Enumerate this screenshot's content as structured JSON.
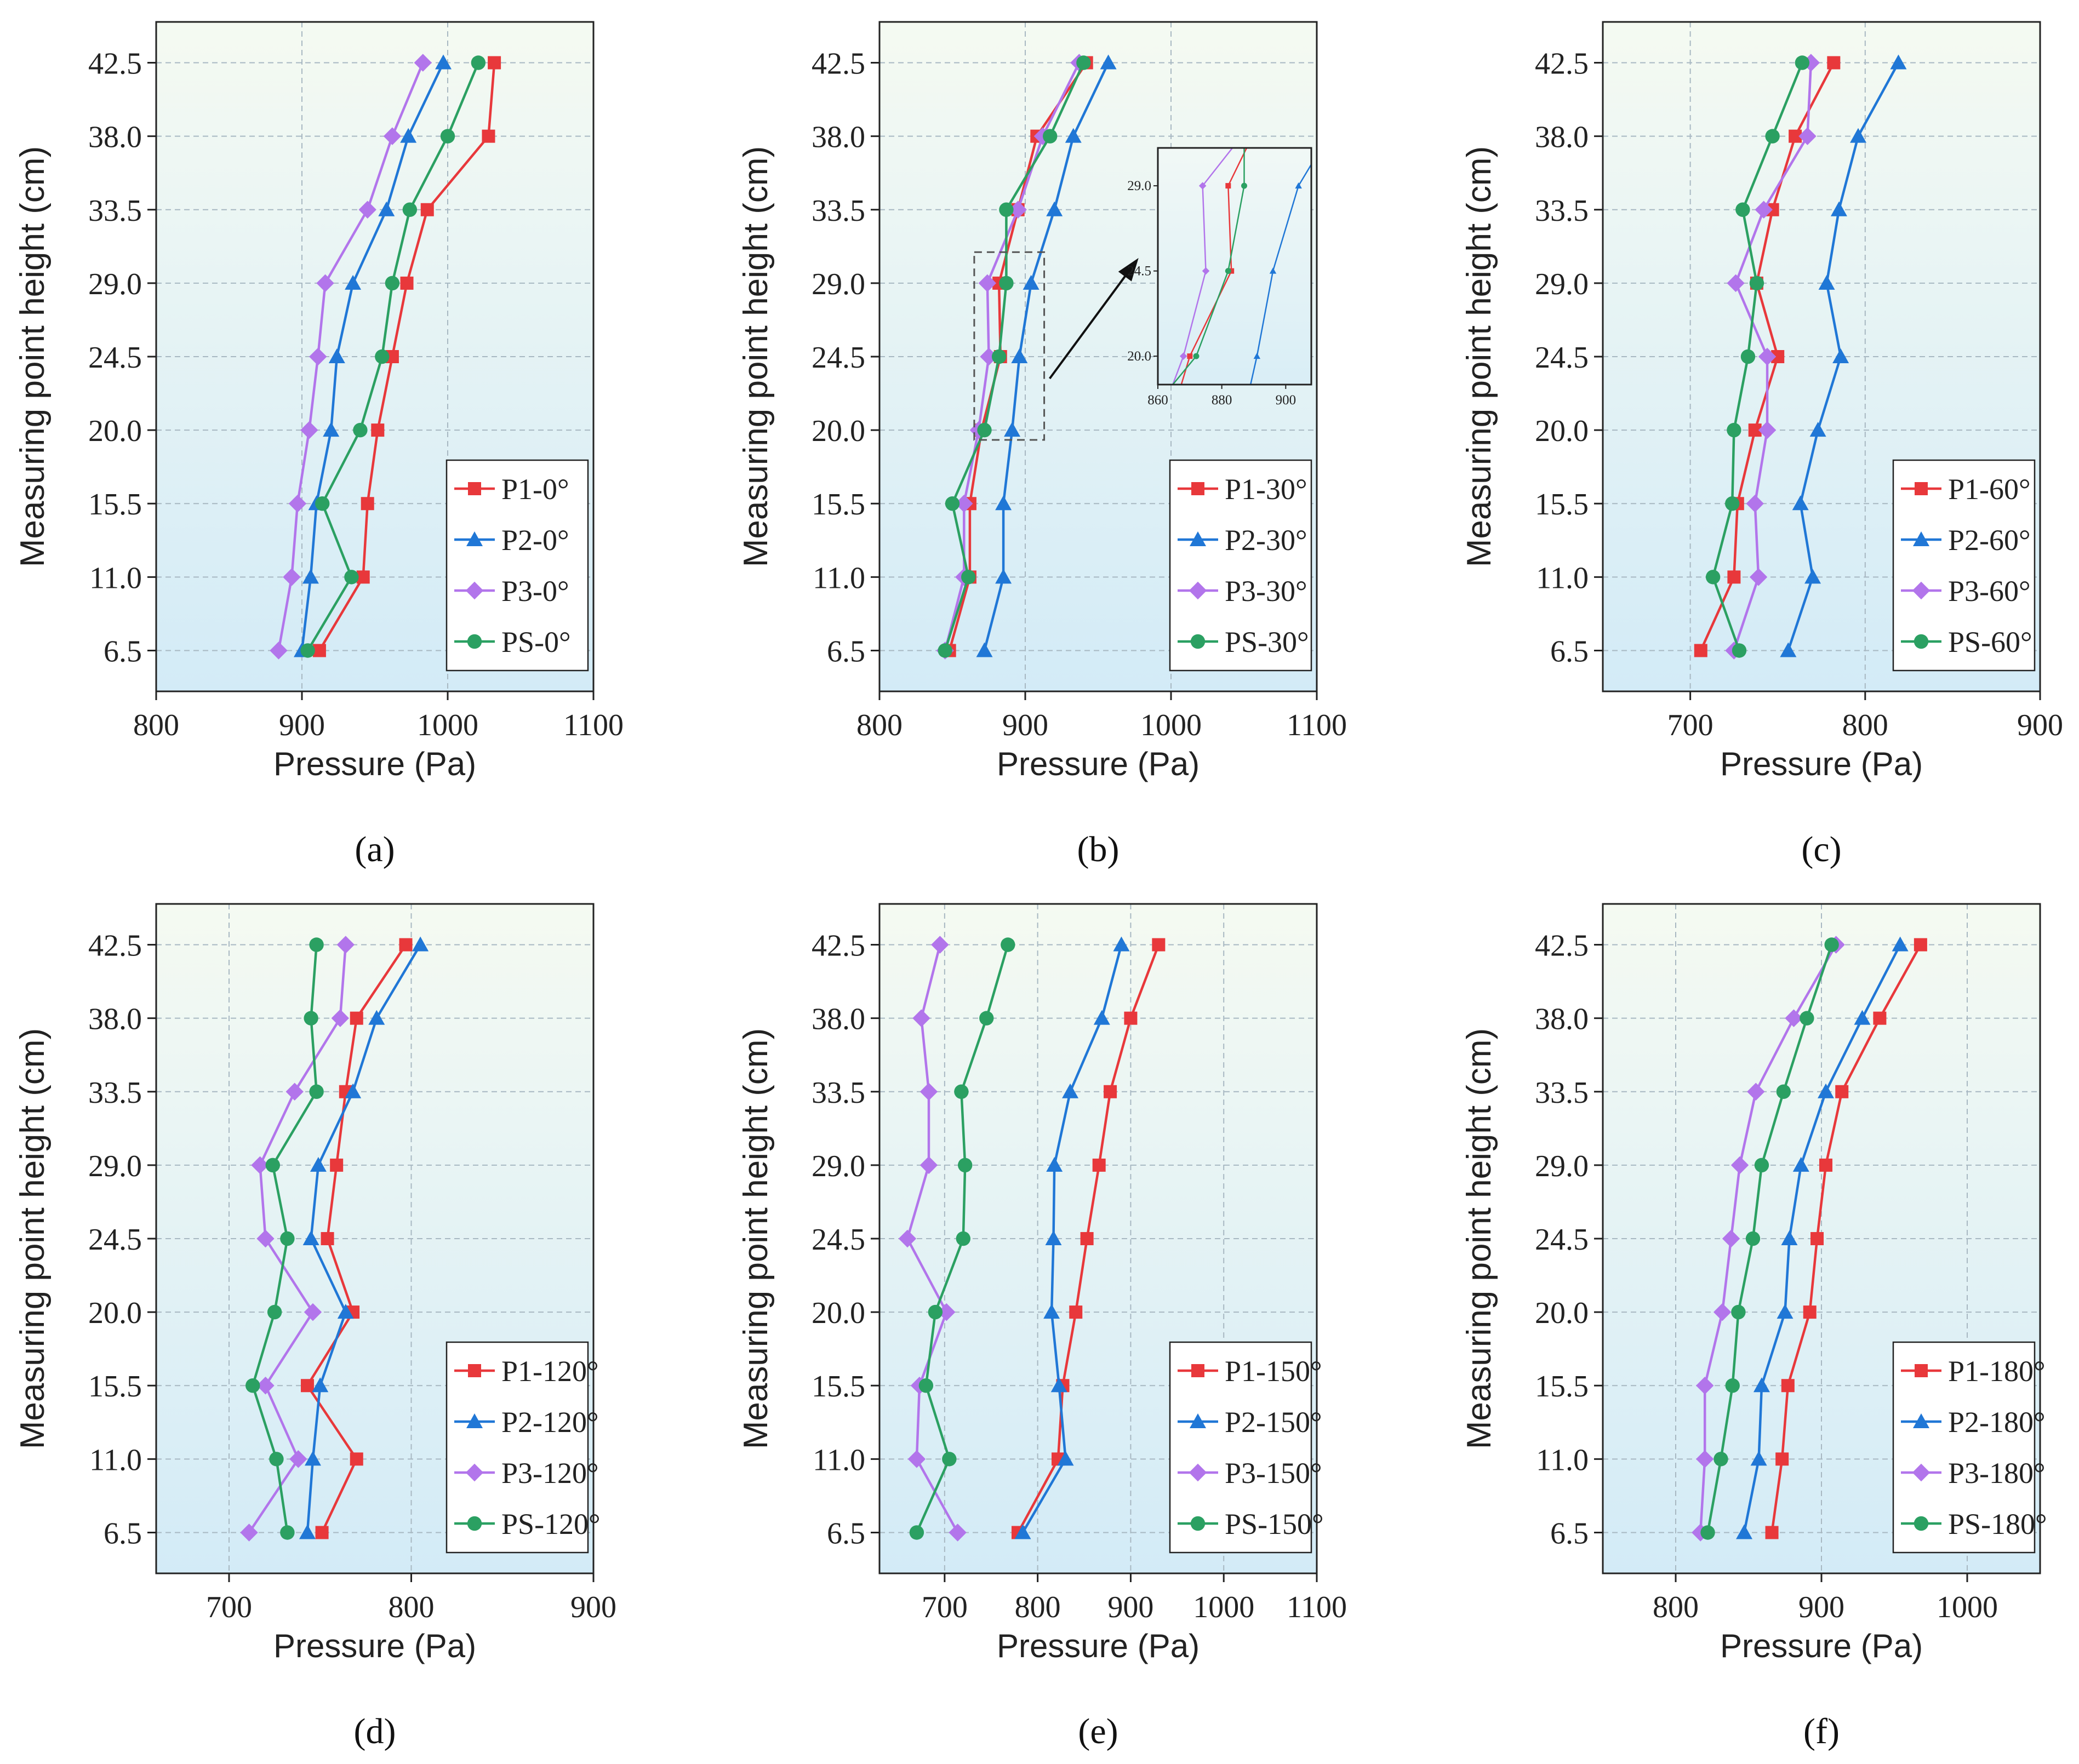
{
  "figure": {
    "panel_labels": [
      "(a)",
      "(b)",
      "(c)",
      "(d)",
      "(e)",
      "(f)"
    ],
    "colors": {
      "P1": "#e8383b",
      "P2": "#2077d6",
      "P3": "#b275eb",
      "PS": "#2ba062"
    },
    "markers": {
      "P1": "square",
      "P2": "triangle",
      "P3": "diamond",
      "PS": "circle"
    }
  },
  "chart_data": [
    {
      "type": "line",
      "label": "(a)",
      "xlabel": "Pressure (Pa)",
      "ylabel": "Measuring point height (cm)",
      "xlim": [
        800,
        1100
      ],
      "xticks": [
        800,
        900,
        1000,
        1100
      ],
      "ylim": [
        4,
        45
      ],
      "yticks": [
        6.5,
        11.0,
        15.5,
        20.0,
        24.5,
        29.0,
        33.5,
        38.0,
        42.5
      ],
      "ytick_labels": [
        "6.5",
        "11.0",
        "15.5",
        "20.0",
        "24.5",
        "29.0",
        "33.5",
        "38.0",
        "42.5"
      ],
      "grid": true,
      "legend_position": "bottom-right",
      "y": [
        6.5,
        11.0,
        15.5,
        20.0,
        24.5,
        29.0,
        33.5,
        38.0,
        42.5
      ],
      "series": [
        {
          "key": "P1",
          "name": "P1-0°",
          "values": [
            912,
            942,
            945,
            952,
            962,
            972,
            986,
            1028,
            1032
          ]
        },
        {
          "key": "P2",
          "name": "P2-0°",
          "values": [
            900,
            906,
            910,
            920,
            924,
            935,
            958,
            973,
            997
          ]
        },
        {
          "key": "P3",
          "name": "P3-0°",
          "values": [
            884,
            893,
            897,
            905,
            911,
            916,
            945,
            962,
            983
          ]
        },
        {
          "key": "PS",
          "name": "PS-0°",
          "values": [
            904,
            934,
            914,
            940,
            955,
            962,
            974,
            1000,
            1021
          ]
        }
      ]
    },
    {
      "type": "line",
      "label": "(b)",
      "xlabel": "Pressure (Pa)",
      "ylabel": "Measuring point height (cm)",
      "xlim": [
        800,
        1100
      ],
      "xticks": [
        800,
        900,
        1000,
        1100
      ],
      "ylim": [
        4,
        45
      ],
      "yticks": [
        6.5,
        11.0,
        15.5,
        20.0,
        24.5,
        29.0,
        33.5,
        38.0,
        42.5
      ],
      "ytick_labels": [
        "6.5",
        "11.0",
        "15.5",
        "20.0",
        "24.5",
        "29.0",
        "33.5",
        "38.0",
        "42.5"
      ],
      "grid": true,
      "legend_position": "bottom-right",
      "y": [
        6.5,
        11.0,
        15.5,
        20.0,
        24.5,
        29.0,
        33.5,
        38.0,
        42.5
      ],
      "series": [
        {
          "key": "P1",
          "name": "P1-30°",
          "values": [
            848,
            862,
            862,
            870,
            883,
            882,
            895,
            908,
            942
          ]
        },
        {
          "key": "P2",
          "name": "P2-30°",
          "values": [
            872,
            885,
            885,
            891,
            896,
            904,
            920,
            933,
            957
          ]
        },
        {
          "key": "P3",
          "name": "P3-30°",
          "values": [
            845,
            858,
            858,
            868,
            875,
            874,
            895,
            912,
            937
          ]
        },
        {
          "key": "PS",
          "name": "PS-30°",
          "values": [
            845,
            861,
            850,
            872,
            882,
            887,
            887,
            917,
            940
          ]
        }
      ],
      "inset": {
        "xlim": [
          860,
          908
        ],
        "xticks": [
          860,
          880,
          900
        ],
        "ylim": [
          18.5,
          31
        ],
        "yticks": [
          20.0,
          24.5,
          29.0
        ],
        "ytick_labels": [
          "20.0",
          "24.5",
          "29.0"
        ],
        "zoom_box": {
          "x": [
            865,
            913
          ],
          "y": [
            19.4,
            30.9
          ]
        }
      }
    },
    {
      "type": "line",
      "label": "(c)",
      "xlabel": "Pressure (Pa)",
      "ylabel": "Measuring point height (cm)",
      "xlim": [
        650,
        900
      ],
      "xticks": [
        700,
        800,
        900
      ],
      "ylim": [
        4,
        45
      ],
      "yticks": [
        6.5,
        11.0,
        15.5,
        20.0,
        24.5,
        29.0,
        33.5,
        38.0,
        42.5
      ],
      "ytick_labels": [
        "6.5",
        "11.0",
        "15.5",
        "20.0",
        "24.5",
        "29.0",
        "33.5",
        "38.0",
        "42.5"
      ],
      "grid": true,
      "legend_position": "bottom-right",
      "y": [
        6.5,
        11.0,
        15.5,
        20.0,
        24.5,
        29.0,
        33.5,
        38.0,
        42.5
      ],
      "series": [
        {
          "key": "P1",
          "name": "P1-60°",
          "values": [
            706,
            725,
            727,
            737,
            750,
            738,
            747,
            760,
            782
          ]
        },
        {
          "key": "P2",
          "name": "P2-60°",
          "values": [
            756,
            770,
            763,
            773,
            786,
            778,
            785,
            796,
            819
          ]
        },
        {
          "key": "P3",
          "name": "P3-60°",
          "values": [
            725,
            739,
            737,
            744,
            744,
            726,
            742,
            767,
            769
          ]
        },
        {
          "key": "PS",
          "name": "PS-60°",
          "values": [
            728,
            713,
            724,
            725,
            733,
            738,
            730,
            747,
            764
          ]
        }
      ]
    },
    {
      "type": "line",
      "label": "(d)",
      "xlabel": "Pressure (Pa)",
      "ylabel": "Measuring point height (cm)",
      "xlim": [
        660,
        900
      ],
      "xticks": [
        700,
        800,
        900
      ],
      "ylim": [
        4,
        45
      ],
      "yticks": [
        6.5,
        11.0,
        15.5,
        20.0,
        24.5,
        29.0,
        33.5,
        38.0,
        42.5
      ],
      "ytick_labels": [
        "6.5",
        "11.0",
        "15.5",
        "20.0",
        "24.5",
        "29.0",
        "33.5",
        "38.0",
        "42.5"
      ],
      "grid": true,
      "legend_position": "bottom-right",
      "y": [
        6.5,
        11.0,
        15.5,
        20.0,
        24.5,
        29.0,
        33.5,
        38.0,
        42.5
      ],
      "series": [
        {
          "key": "P1",
          "name": "P1-120°",
          "values": [
            751,
            770,
            743,
            768,
            754,
            759,
            764,
            770,
            797
          ]
        },
        {
          "key": "P2",
          "name": "P2-120°",
          "values": [
            743,
            746,
            750,
            764,
            745,
            749,
            768,
            781,
            805
          ]
        },
        {
          "key": "P3",
          "name": "P3-120°",
          "values": [
            711,
            738,
            720,
            746,
            720,
            717,
            736,
            761,
            764
          ]
        },
        {
          "key": "PS",
          "name": "PS-120°",
          "values": [
            732,
            726,
            713,
            725,
            732,
            724,
            748,
            745,
            748
          ]
        }
      ]
    },
    {
      "type": "line",
      "label": "(e)",
      "xlabel": "Pressure (Pa)",
      "ylabel": "Measuring point height (cm)",
      "xlim": [
        630,
        1100
      ],
      "xticks": [
        700,
        800,
        900,
        1000,
        1100
      ],
      "ylim": [
        4,
        45
      ],
      "yticks": [
        6.5,
        11.0,
        15.5,
        20.0,
        24.5,
        29.0,
        33.5,
        38.0,
        42.5
      ],
      "ytick_labels": [
        "6.5",
        "11.0",
        "15.5",
        "20.0",
        "24.5",
        "29.0",
        "33.5",
        "38.0",
        "42.5"
      ],
      "grid": true,
      "legend_position": "bottom-right",
      "y": [
        6.5,
        11.0,
        15.5,
        20.0,
        24.5,
        29.0,
        33.5,
        38.0,
        42.5
      ],
      "series": [
        {
          "key": "P1",
          "name": "P1-150°",
          "values": [
            779,
            822,
            827,
            841,
            853,
            866,
            878,
            900,
            930
          ]
        },
        {
          "key": "P2",
          "name": "P2-150°",
          "values": [
            784,
            830,
            823,
            815,
            817,
            818,
            835,
            869,
            890
          ]
        },
        {
          "key": "P3",
          "name": "P3-150°",
          "values": [
            714,
            670,
            673,
            702,
            660,
            683,
            683,
            675,
            695
          ]
        },
        {
          "key": "PS",
          "name": "PS-150°",
          "values": [
            670,
            705,
            680,
            690,
            720,
            722,
            718,
            745,
            768
          ]
        }
      ]
    },
    {
      "type": "line",
      "label": "(f)",
      "xlabel": "Pressure (Pa)",
      "ylabel": "Measuring point height (cm)",
      "xlim": [
        750,
        1050
      ],
      "xticks": [
        800,
        900,
        1000
      ],
      "ylim": [
        4,
        45
      ],
      "yticks": [
        6.5,
        11.0,
        15.5,
        20.0,
        24.5,
        29.0,
        33.5,
        38.0,
        42.5
      ],
      "ytick_labels": [
        "6.5",
        "11.0",
        "15.5",
        "20.0",
        "24.5",
        "29.0",
        "33.5",
        "38.0",
        "42.5"
      ],
      "grid": true,
      "legend_position": "bottom-right",
      "y": [
        6.5,
        11.0,
        15.5,
        20.0,
        24.5,
        29.0,
        33.5,
        38.0,
        42.5
      ],
      "series": [
        {
          "key": "P1",
          "name": "P1-180°",
          "values": [
            866,
            873,
            877,
            892,
            897,
            903,
            914,
            940,
            968
          ]
        },
        {
          "key": "P2",
          "name": "P2-180°",
          "values": [
            847,
            857,
            859,
            875,
            878,
            886,
            903,
            928,
            954
          ]
        },
        {
          "key": "P3",
          "name": "P3-180°",
          "values": [
            817,
            820,
            820,
            832,
            838,
            844,
            855,
            881,
            910
          ]
        },
        {
          "key": "PS",
          "name": "PS-180°",
          "values": [
            822,
            831,
            839,
            843,
            853,
            859,
            874,
            890,
            907
          ]
        }
      ]
    }
  ]
}
